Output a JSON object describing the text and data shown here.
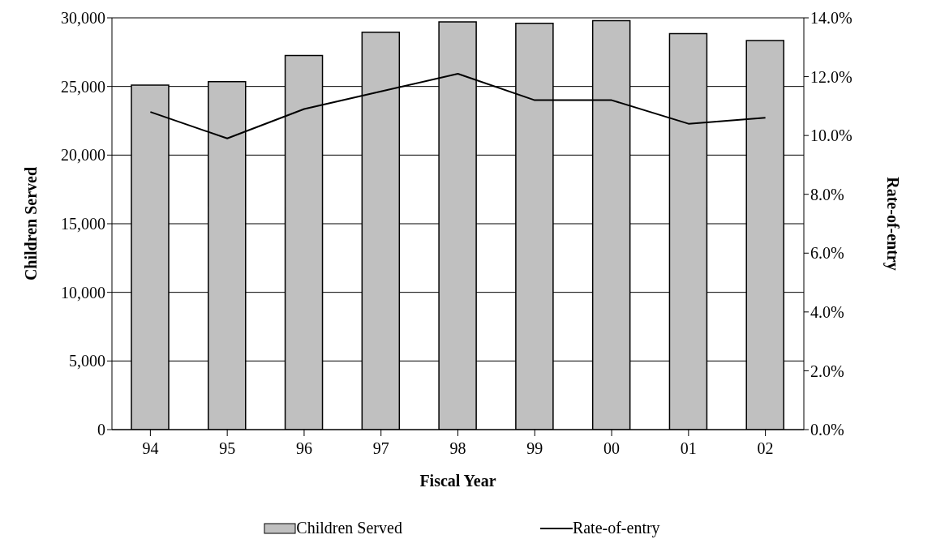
{
  "chart_data": {
    "type": "bar",
    "xlabel": "Fiscal Year",
    "ylabel": "Children Served",
    "y2label": "Rate-of-entry",
    "categories": [
      "94",
      "95",
      "96",
      "97",
      "98",
      "99",
      "00",
      "01",
      "02"
    ],
    "series": [
      {
        "name": "Children Served",
        "color": "#c0c0c0",
        "values": [
          25100,
          25350,
          27250,
          28950,
          29700,
          29600,
          29800,
          28850,
          28350
        ]
      },
      {
        "name": "Rate-of-entry",
        "type": "line",
        "axis": "y2",
        "color": "#000000",
        "values": [
          10.8,
          9.9,
          10.9,
          11.5,
          12.1,
          11.2,
          11.2,
          10.4,
          10.6
        ]
      }
    ],
    "ylim": [
      0,
      30000
    ],
    "yticks": [
      {
        "value": 0,
        "label": "0"
      },
      {
        "value": 5000,
        "label": "5,000"
      },
      {
        "value": 10000,
        "label": "10,000"
      },
      {
        "value": 15000,
        "label": "15,000"
      },
      {
        "value": 20000,
        "label": "20,000"
      },
      {
        "value": 25000,
        "label": "25,000"
      },
      {
        "value": 30000,
        "label": "30,000"
      }
    ],
    "y2lim": [
      0,
      14
    ],
    "y2ticks": [
      {
        "value": 0,
        "label": "0.0%"
      },
      {
        "value": 2,
        "label": "2.0%"
      },
      {
        "value": 4,
        "label": "4.0%"
      },
      {
        "value": 6,
        "label": "6.0%"
      },
      {
        "value": 8,
        "label": "8.0%"
      },
      {
        "value": 10,
        "label": "10.0%"
      },
      {
        "value": 12,
        "label": "12.0%"
      },
      {
        "value": 14,
        "label": "14.0%"
      }
    ],
    "grid": "y",
    "legend": "bottom",
    "marker": "none"
  }
}
